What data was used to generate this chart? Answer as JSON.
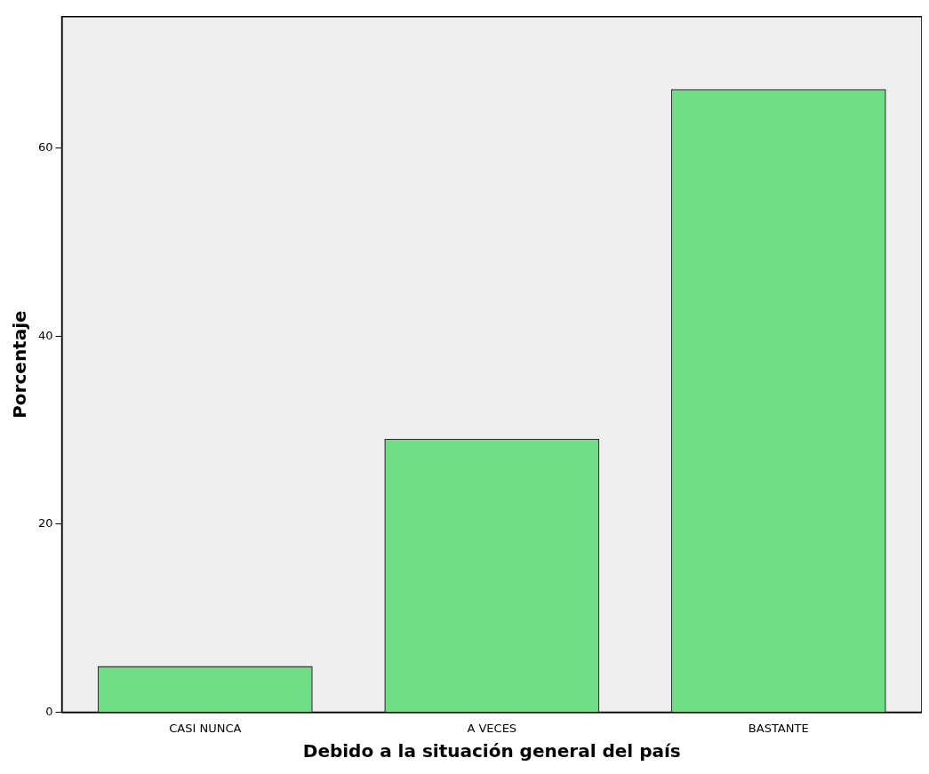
{
  "chart_data": {
    "type": "bar",
    "xlabel": "Debido a la situación general del país",
    "ylabel": "Porcentaje",
    "categories": [
      "CASI NUNCA",
      "A VECES",
      "BASTANTE"
    ],
    "values": [
      4.9,
      29.1,
      66.3
    ],
    "color": "#71dc86",
    "ylim": [
      0,
      74
    ],
    "yticks": [
      0,
      20,
      40,
      60
    ],
    "grid": false
  }
}
